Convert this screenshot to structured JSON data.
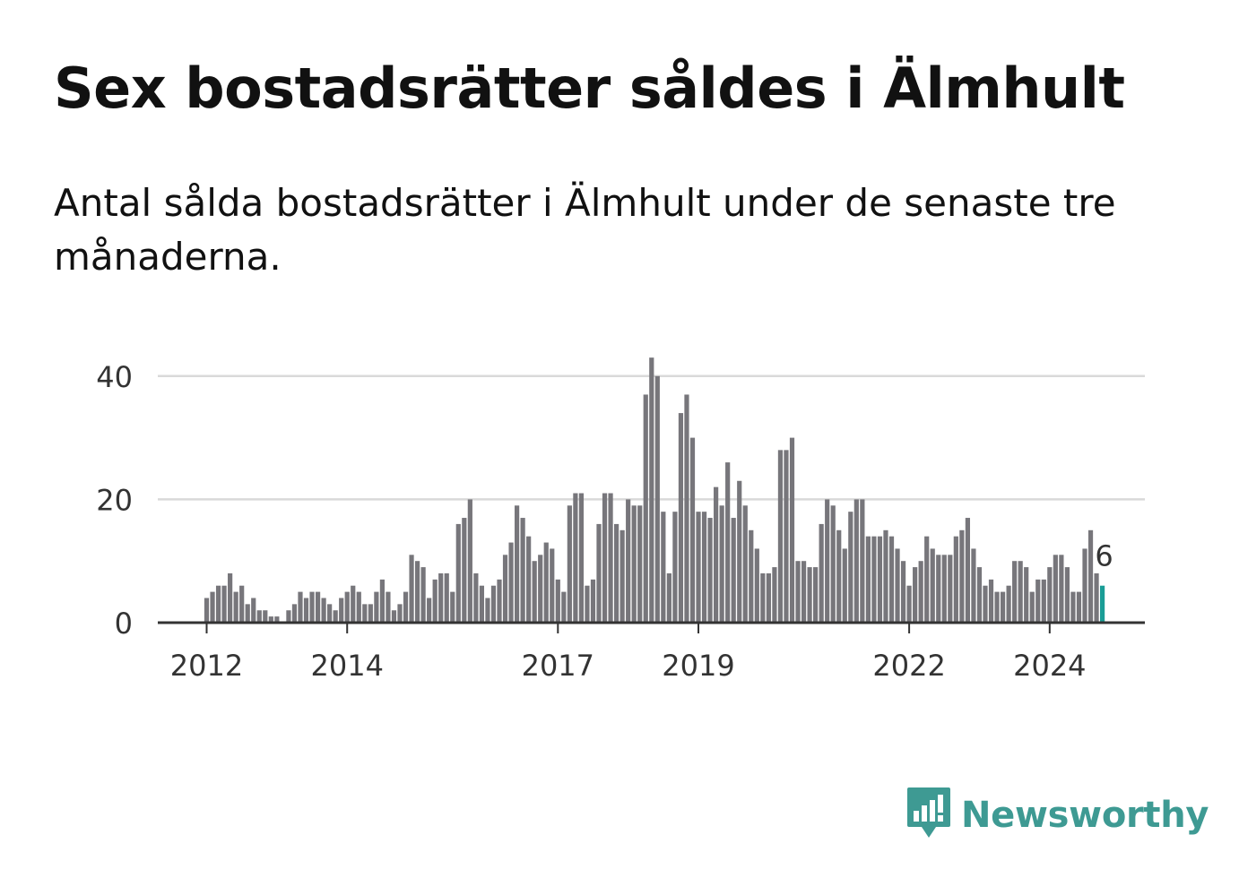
{
  "header": {
    "title": "Sex bostadsrätter såldes i Älmhult",
    "subtitle": "Antal sålda bostadsrätter i Älmhult under de senaste tre månaderna."
  },
  "brand": {
    "name": "Newsworthy",
    "color": "#3e9a93",
    "icon": "chart-speech-bubble-icon"
  },
  "colors": {
    "bar": "#77767b",
    "highlight": "#1a9d96",
    "grid": "#d9d9d9",
    "axis": "#333333"
  },
  "chart_data": {
    "type": "bar",
    "title": "Sex bostadsrätter såldes i Älmhult",
    "subtitle": "Antal sålda bostadsrätter i Älmhult under de senaste tre månaderna.",
    "xlabel": "",
    "ylabel": "",
    "ylim": [
      0,
      46
    ],
    "yticks": [
      0,
      20,
      40
    ],
    "xtick_labels": [
      "2012",
      "2014",
      "2017",
      "2019",
      "2022",
      "2024"
    ],
    "grid": true,
    "legend": "none",
    "start": "2012-01",
    "frequency": "monthly",
    "values": [
      4,
      5,
      6,
      6,
      8,
      5,
      6,
      3,
      4,
      2,
      2,
      1,
      1,
      0,
      2,
      3,
      5,
      4,
      5,
      5,
      4,
      3,
      2,
      4,
      5,
      6,
      5,
      3,
      3,
      5,
      7,
      5,
      2,
      3,
      5,
      11,
      10,
      9,
      4,
      7,
      8,
      8,
      5,
      16,
      17,
      20,
      8,
      6,
      4,
      6,
      7,
      11,
      13,
      19,
      17,
      14,
      10,
      11,
      13,
      12,
      7,
      5,
      19,
      21,
      21,
      6,
      7,
      16,
      21,
      21,
      16,
      15,
      20,
      19,
      19,
      37,
      43,
      40,
      18,
      8,
      18,
      34,
      37,
      30,
      18,
      18,
      17,
      22,
      19,
      26,
      17,
      23,
      19,
      15,
      12,
      8,
      8,
      9,
      28,
      28,
      30,
      10,
      10,
      9,
      9,
      16,
      20,
      19,
      15,
      12,
      18,
      20,
      20,
      14,
      14,
      14,
      15,
      14,
      12,
      10,
      6,
      9,
      10,
      14,
      12,
      11,
      11,
      11,
      14,
      15,
      17,
      12,
      9,
      6,
      7,
      5,
      5,
      6,
      10,
      10,
      9,
      5,
      7,
      7,
      9,
      11,
      11,
      9,
      5,
      5,
      12,
      15,
      8,
      6
    ],
    "highlight": {
      "label": "6",
      "value": 6
    }
  }
}
